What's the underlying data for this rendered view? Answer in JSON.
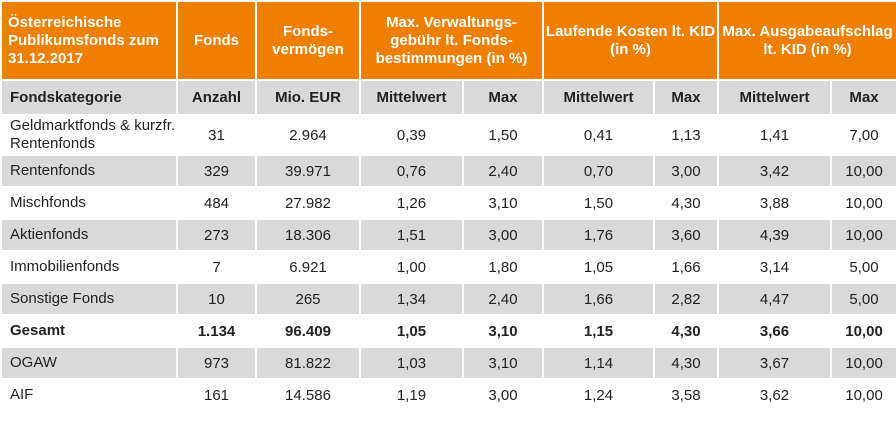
{
  "header": {
    "title": "Österreichische Publikumsfonds zum 31.12.2017",
    "fonds": "Fonds",
    "fondsvermoegen": "Fonds-vermögen",
    "verwaltung": "Max. Verwaltungs-gebühr lt. Fonds-bestimmungen (in %)",
    "laufende": "Laufende Kosten lt. KID (in %)",
    "ausgabe": "Max. Ausgabeaufschlag lt. KID (in %)"
  },
  "subheader": {
    "kategorie": "Fondskategorie",
    "anzahl": "Anzahl",
    "mio": "Mio. EUR",
    "mittel1": "Mittelwert",
    "max1": "Max",
    "mittel2": "Mittelwert",
    "max2": "Max",
    "mittel3": "Mittelwert",
    "max3": "Max"
  },
  "rows": [
    {
      "kategorie": "Geldmarktfonds & kurzfr. Rentenfonds",
      "anzahl": "31",
      "mio": "2.964",
      "vw_mittel": "0,39",
      "vw_max": "1,50",
      "lk_mittel": "0,41",
      "lk_max": "1,13",
      "aa_mittel": "1,41",
      "aa_max": "7,00"
    },
    {
      "kategorie": "Rentenfonds",
      "anzahl": "329",
      "mio": "39.971",
      "vw_mittel": "0,76",
      "vw_max": "2,40",
      "lk_mittel": "0,70",
      "lk_max": "3,00",
      "aa_mittel": "3,42",
      "aa_max": "10,00"
    },
    {
      "kategorie": "Mischfonds",
      "anzahl": "484",
      "mio": "27.982",
      "vw_mittel": "1,26",
      "vw_max": "3,10",
      "lk_mittel": "1,50",
      "lk_max": "4,30",
      "aa_mittel": "3,88",
      "aa_max": "10,00"
    },
    {
      "kategorie": "Aktienfonds",
      "anzahl": "273",
      "mio": "18.306",
      "vw_mittel": "1,51",
      "vw_max": "3,00",
      "lk_mittel": "1,76",
      "lk_max": "3,60",
      "aa_mittel": "4,39",
      "aa_max": "10,00"
    },
    {
      "kategorie": "Immobilienfonds",
      "anzahl": "7",
      "mio": "6.921",
      "vw_mittel": "1,00",
      "vw_max": "1,80",
      "lk_mittel": "1,05",
      "lk_max": "1,66",
      "aa_mittel": "3,14",
      "aa_max": "5,00"
    },
    {
      "kategorie": "Sonstige Fonds",
      "anzahl": "10",
      "mio": "265",
      "vw_mittel": "1,34",
      "vw_max": "2,40",
      "lk_mittel": "1,66",
      "lk_max": "2,82",
      "aa_mittel": "4,47",
      "aa_max": "5,00"
    },
    {
      "kategorie": "Gesamt",
      "anzahl": "1.134",
      "mio": "96.409",
      "vw_mittel": "1,05",
      "vw_max": "3,10",
      "lk_mittel": "1,15",
      "lk_max": "4,30",
      "aa_mittel": "3,66",
      "aa_max": "10,00"
    },
    {
      "kategorie": "OGAW",
      "anzahl": "973",
      "mio": "81.822",
      "vw_mittel": "1,03",
      "vw_max": "3,10",
      "lk_mittel": "1,14",
      "lk_max": "4,30",
      "aa_mittel": "3,67",
      "aa_max": "10,00"
    },
    {
      "kategorie": "AIF",
      "anzahl": "161",
      "mio": "14.586",
      "vw_mittel": "1,19",
      "vw_max": "3,00",
      "lk_mittel": "1,24",
      "lk_max": "3,58",
      "aa_mittel": "3,62",
      "aa_max": "10,00"
    }
  ],
  "colors": {
    "header_orange": "#ee7f00",
    "row_gray": "#d9d9d9",
    "row_white": "#ffffff"
  }
}
